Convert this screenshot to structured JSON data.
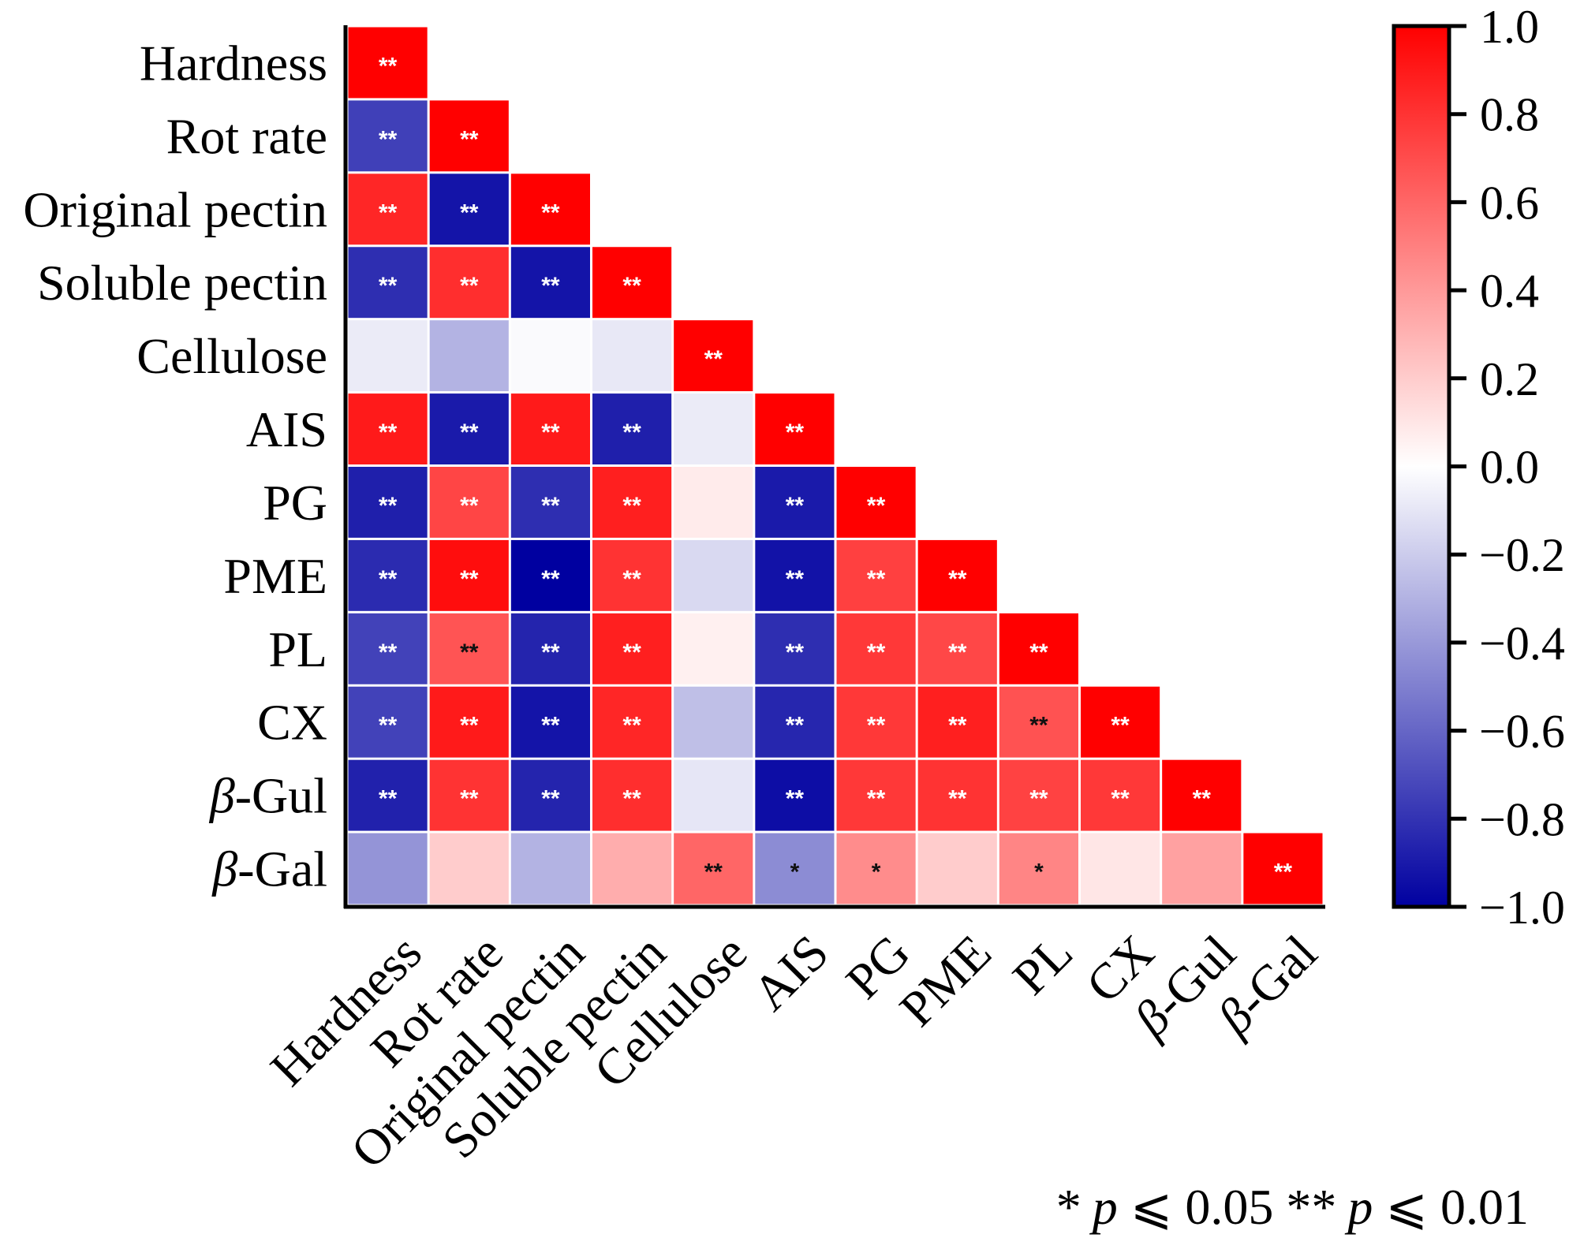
{
  "chart_data": {
    "type": "heatmap",
    "subtype": "lower-triangular correlation matrix",
    "variables": [
      "Hardness",
      "Rot rate",
      "Original pectin",
      "Soluble pectin",
      "Cellulose",
      "AIS",
      "PG",
      "PME",
      "PL",
      "CX",
      "β-Gul",
      "β-Gal"
    ],
    "variables_italic_prefix": [
      null,
      null,
      null,
      null,
      null,
      null,
      null,
      null,
      null,
      null,
      "β",
      "β"
    ],
    "values": [
      [
        1.0
      ],
      [
        -0.75,
        1.0
      ],
      [
        0.85,
        -0.92,
        1.0
      ],
      [
        -0.82,
        0.82,
        -0.92,
        1.0
      ],
      [
        -0.08,
        -0.3,
        -0.02,
        -0.09,
        1.0
      ],
      [
        0.9,
        -0.9,
        0.9,
        -0.88,
        -0.08,
        1.0
      ],
      [
        -0.88,
        0.73,
        -0.82,
        0.88,
        0.08,
        -0.9,
        1.0
      ],
      [
        -0.83,
        0.95,
        -1.0,
        0.8,
        -0.15,
        -0.93,
        0.75,
        1.0
      ],
      [
        -0.74,
        0.67,
        -0.86,
        0.88,
        0.06,
        -0.82,
        0.78,
        0.72,
        1.0
      ],
      [
        -0.74,
        0.9,
        -0.92,
        0.85,
        -0.25,
        -0.85,
        0.78,
        0.88,
        0.68,
        1.0
      ],
      [
        -0.87,
        0.8,
        -0.86,
        0.82,
        -0.1,
        -0.95,
        0.78,
        0.8,
        0.74,
        0.78,
        1.0
      ],
      [
        -0.42,
        0.2,
        -0.3,
        0.32,
        0.6,
        -0.45,
        0.45,
        0.2,
        0.48,
        0.1,
        0.37,
        1.0
      ]
    ],
    "significance": [
      [
        "**"
      ],
      [
        "**",
        "**"
      ],
      [
        "**",
        "**",
        "**"
      ],
      [
        "**",
        "**",
        "**",
        "**"
      ],
      [
        "",
        "",
        "",
        "",
        "**"
      ],
      [
        "**",
        "**",
        "**",
        "**",
        "",
        "**"
      ],
      [
        "**",
        "**",
        "**",
        "**",
        "",
        "**",
        "**"
      ],
      [
        "**",
        "**",
        "**",
        "**",
        "",
        "**",
        "**",
        "**"
      ],
      [
        "**",
        "**",
        "**",
        "**",
        "",
        "**",
        "**",
        "**",
        "**"
      ],
      [
        "**",
        "**",
        "**",
        "**",
        "",
        "**",
        "**",
        "**",
        "**",
        "**"
      ],
      [
        "**",
        "**",
        "**",
        "**",
        "",
        "**",
        "**",
        "**",
        "**",
        "**",
        "**"
      ],
      [
        "",
        "",
        "",
        "",
        "**",
        "*",
        "*",
        "",
        "*",
        "",
        "",
        "**"
      ]
    ],
    "significance_mark_color": [
      [
        "white"
      ],
      [
        "white",
        "white"
      ],
      [
        "white",
        "white",
        "white"
      ],
      [
        "white",
        "white",
        "white",
        "white"
      ],
      [
        "",
        "",
        "",
        "",
        "white"
      ],
      [
        "white",
        "white",
        "white",
        "white",
        "",
        "white"
      ],
      [
        "white",
        "white",
        "white",
        "white",
        "",
        "white",
        "white"
      ],
      [
        "white",
        "white",
        "white",
        "white",
        "",
        "white",
        "white",
        "white"
      ],
      [
        "white",
        "black",
        "white",
        "white",
        "",
        "white",
        "white",
        "white",
        "white"
      ],
      [
        "white",
        "white",
        "white",
        "white",
        "",
        "white",
        "white",
        "white",
        "black",
        "white"
      ],
      [
        "white",
        "white",
        "white",
        "white",
        "",
        "white",
        "white",
        "white",
        "white",
        "white",
        "white"
      ],
      [
        "",
        "",
        "",
        "",
        "black",
        "black",
        "black",
        "",
        "black",
        "",
        "",
        "white"
      ]
    ],
    "colorbar": {
      "range": [
        -1.0,
        1.0
      ],
      "ticks": [
        1.0,
        0.8,
        0.6,
        0.4,
        0.2,
        0.0,
        -0.2,
        -0.4,
        -0.6,
        -0.8,
        -1.0
      ],
      "tick_labels": [
        "1.0",
        "0.8",
        "0.6",
        "0.4",
        "0.2",
        "0.0",
        "−0.2",
        "−0.4",
        "−0.6",
        "−0.8",
        "−1.0"
      ],
      "color_max": "#ff0000",
      "color_mid": "#ffffff",
      "color_min": "#0000a0",
      "placement": "right"
    },
    "legend": {
      "star1": "*",
      "star1_text": " ⩽ 0.05 ",
      "star2": "**",
      "star2_text": " ⩽ 0.01",
      "p_symbol": "p",
      "placement": "bottom-right"
    },
    "xlabel_rotation": "45° diagonal",
    "title": "",
    "xlabel": "",
    "ylabel": ""
  }
}
